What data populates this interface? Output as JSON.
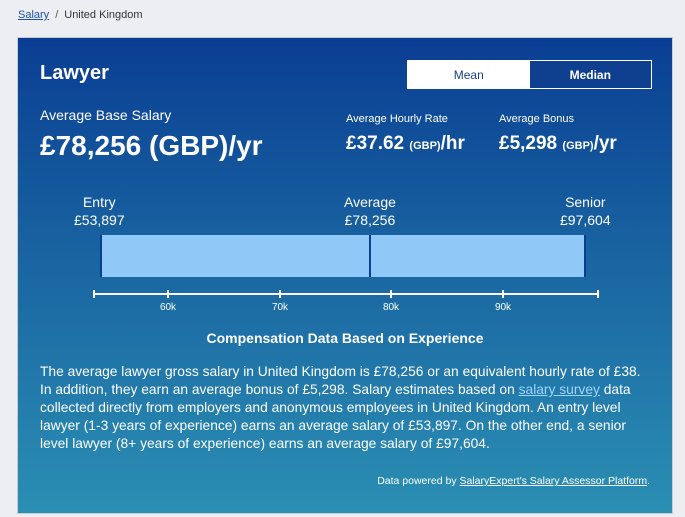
{
  "breadcrumb": {
    "link": "Salary",
    "separator": "/",
    "current": "United Kingdom"
  },
  "card": {
    "title": "Lawyer",
    "toggle": {
      "mean": "Mean",
      "median": "Median",
      "selected": "Mean"
    },
    "base": {
      "label": "Average Base Salary",
      "value": "£78,256 (GBP)/yr"
    },
    "hourly": {
      "label": "Average Hourly Rate",
      "amount": "£37.62",
      "unit": "(GBP)",
      "suffix": "/hr"
    },
    "bonus": {
      "label": "Average Bonus",
      "amount": "£5,298",
      "unit": "(GBP)",
      "suffix": "/yr"
    },
    "range": {
      "entry_label": "Entry",
      "entry_value": "£53,897",
      "average_label": "Average",
      "average_value": "£78,256",
      "senior_label": "Senior",
      "senior_value": "£97,604"
    },
    "axis_ticks": [
      "60k",
      "70k",
      "80k",
      "90k"
    ],
    "exp_heading": "Compensation Data Based on Experience",
    "description": {
      "part1": "The average lawyer gross salary in United Kingdom is £78,256 or an equivalent hourly rate of £38. In addition, they earn an average bonus of £5,298. Salary estimates based on ",
      "link": "salary survey",
      "part2": " data collected directly from employers and anonymous employees in United Kingdom. An entry level lawyer (1-3 years of experience) earns an average salary of £53,897. On the other end, a senior level lawyer (8+ years of experience) earns an average salary of £97,604."
    },
    "powered": {
      "prefix": "Data powered by ",
      "link": "SalaryExpert's Salary Assessor Platform",
      "suffix": "."
    }
  },
  "colors": {
    "card_top": "#0a3e93",
    "card_bottom": "#2b8fb3",
    "bar": "#90c9f7"
  }
}
